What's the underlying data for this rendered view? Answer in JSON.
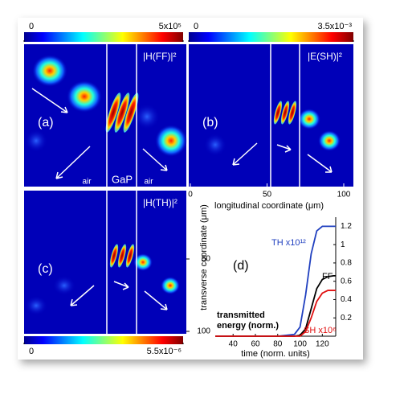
{
  "chart_data": [
    {
      "type": "heatmap",
      "panels": [
        {
          "label": "(a)",
          "title": "|H(FF)|²"
        },
        {
          "label": "(b)",
          "title": "|E(SH)|²"
        },
        {
          "label": "(c)",
          "title": "|H(TH)|²"
        }
      ],
      "region_labels": [
        "air",
        "GaP",
        "air"
      ],
      "colorbars": [
        {
          "ticks": [
            0,
            {
              "value": 500000,
              "label": "5x10⁵"
            }
          ]
        },
        {
          "ticks": [
            0,
            {
              "value": 0.0035,
              "label": "3.5x10⁻³"
            }
          ]
        },
        {
          "ticks": [
            0,
            {
              "value": 5.5e-06,
              "label": "5.5x10⁻⁶"
            }
          ]
        }
      ],
      "x_label": "longitudinal coordinate (μm)",
      "xlim": [
        0,
        100
      ],
      "xticks": [
        0,
        50,
        100
      ],
      "y_label": "transverse coordinate (μm)",
      "ylim": [
        0,
        100
      ],
      "yticks": [
        50,
        100
      ]
    },
    {
      "type": "line",
      "label": "(d)",
      "annotation": [
        "transmitted",
        "energy (norm.)"
      ],
      "x_label": "time (norm. units)",
      "xlim": [
        24,
        132
      ],
      "xticks": [
        40,
        60,
        80,
        100,
        120
      ],
      "ylim": [
        0,
        1.3
      ],
      "yticks": [
        0.2,
        0.4,
        0.6,
        0.8,
        1,
        1.2
      ],
      "x": [
        24,
        40,
        60,
        80,
        95,
        100,
        105,
        110,
        115,
        120,
        125,
        130,
        132
      ],
      "series": [
        {
          "name": "TH x10¹²",
          "color": "#1f3fbf",
          "values": [
            0,
            0,
            0,
            0,
            0.02,
            0.1,
            0.45,
            0.9,
            1.15,
            1.2,
            1.2,
            1.2,
            1.2
          ]
        },
        {
          "name": "FF",
          "color": "#000000",
          "values": [
            0,
            0,
            0,
            0,
            0,
            0.01,
            0.08,
            0.3,
            0.52,
            0.62,
            0.65,
            0.66,
            0.66
          ]
        },
        {
          "name": "SH x10⁶",
          "color": "#e01010",
          "values": [
            0,
            0,
            0,
            0,
            0,
            0,
            0.05,
            0.2,
            0.38,
            0.47,
            0.5,
            0.5,
            0.5
          ]
        }
      ]
    }
  ]
}
